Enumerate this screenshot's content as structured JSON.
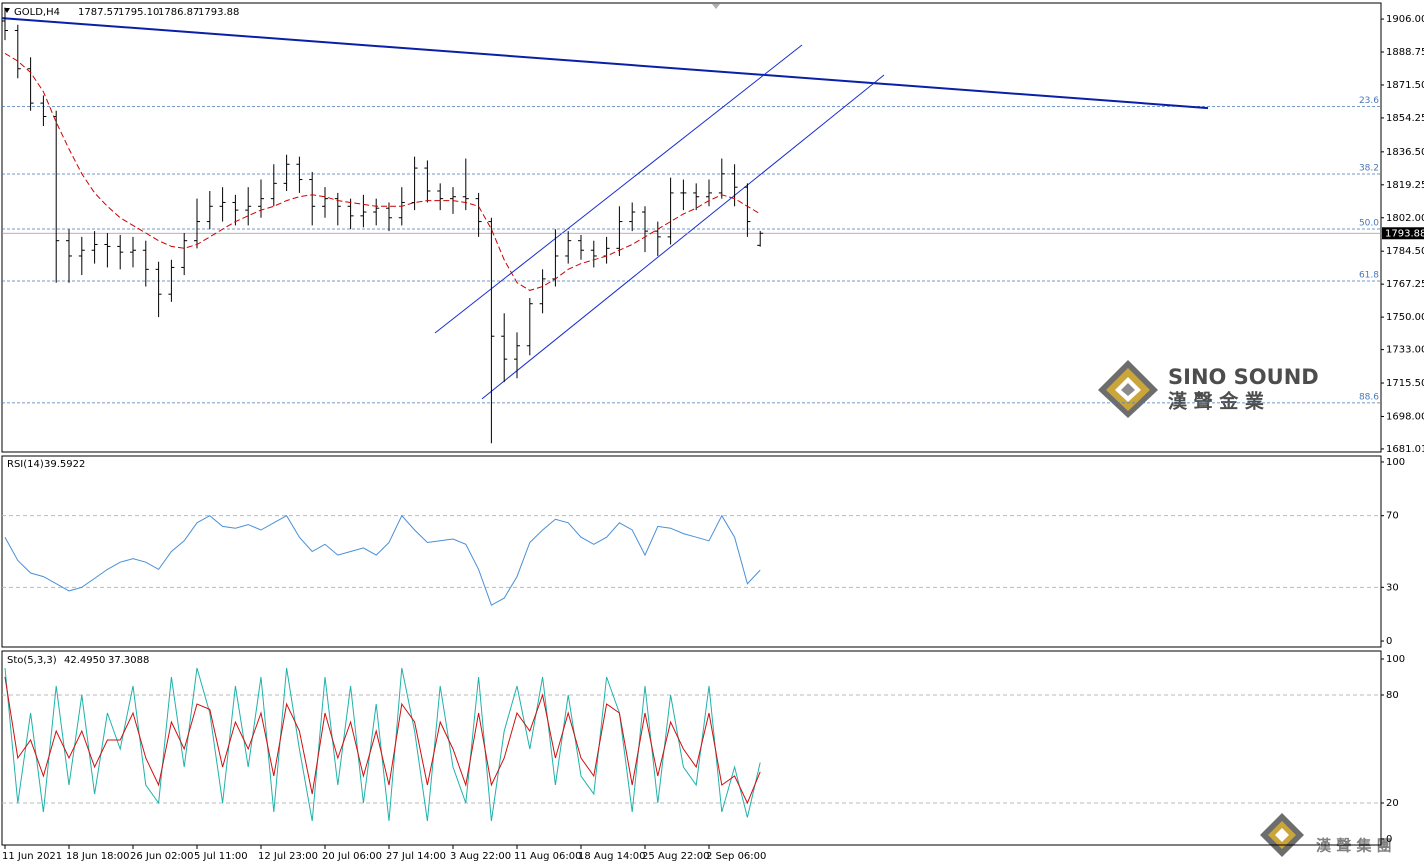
{
  "chart_data": {
    "type": "ohlc",
    "title": "GOLD,H4",
    "header_labels": [
      "1787.57",
      "1795.10",
      "1786.87",
      "1793.88"
    ],
    "categories": [
      "11 Jun 2021",
      null,
      null,
      null,
      null,
      "18 Jun 18:00",
      null,
      null,
      null,
      null,
      "26 Jun 02:00",
      null,
      null,
      null,
      null,
      "5 Jul 11:00",
      null,
      null,
      null,
      null,
      "12 Jul 23:00",
      null,
      null,
      null,
      null,
      "20 Jul 06:00",
      null,
      null,
      null,
      null,
      "27 Jul 14:00",
      null,
      null,
      null,
      null,
      "3 Aug 22:00",
      null,
      null,
      null,
      null,
      "11 Aug 06:00",
      null,
      null,
      null,
      null,
      "18 Aug 14:00",
      null,
      null,
      null,
      null,
      "25 Aug 22:00",
      null,
      null,
      null,
      null,
      "2 Sep 06:00",
      null,
      null,
      null,
      null
    ],
    "bars": [
      [
        1905,
        1912,
        1895,
        1900
      ],
      [
        1900,
        1903,
        1875,
        1880
      ],
      [
        1880,
        1886,
        1858,
        1862
      ],
      [
        1862,
        1866,
        1850,
        1855
      ],
      [
        1855,
        1858,
        1768,
        1790
      ],
      [
        1790,
        1796,
        1768,
        1782
      ],
      [
        1782,
        1792,
        1772,
        1785
      ],
      [
        1785,
        1795,
        1778,
        1788
      ],
      [
        1788,
        1794,
        1776,
        1787
      ],
      [
        1787,
        1793,
        1775,
        1784
      ],
      [
        1784,
        1792,
        1776,
        1785
      ],
      [
        1785,
        1790,
        1766,
        1775
      ],
      [
        1775,
        1779,
        1750,
        1762
      ],
      [
        1762,
        1780,
        1758,
        1776
      ],
      [
        1776,
        1794,
        1772,
        1790
      ],
      [
        1790,
        1812,
        1786,
        1800
      ],
      [
        1800,
        1816,
        1796,
        1808
      ],
      [
        1808,
        1818,
        1800,
        1810
      ],
      [
        1810,
        1814,
        1798,
        1806
      ],
      [
        1806,
        1818,
        1798,
        1808
      ],
      [
        1808,
        1822,
        1802,
        1812
      ],
      [
        1812,
        1830,
        1808,
        1820
      ],
      [
        1820,
        1835,
        1816,
        1830
      ],
      [
        1830,
        1834,
        1815,
        1822
      ],
      [
        1822,
        1826,
        1798,
        1808
      ],
      [
        1808,
        1818,
        1802,
        1812
      ],
      [
        1812,
        1815,
        1798,
        1808
      ],
      [
        1808,
        1812,
        1796,
        1803
      ],
      [
        1803,
        1814,
        1797,
        1805
      ],
      [
        1805,
        1812,
        1798,
        1807
      ],
      [
        1807,
        1810,
        1795,
        1802
      ],
      [
        1802,
        1818,
        1798,
        1810
      ],
      [
        1810,
        1834,
        1806,
        1828
      ],
      [
        1828,
        1832,
        1810,
        1816
      ],
      [
        1816,
        1820,
        1806,
        1812
      ],
      [
        1812,
        1818,
        1804,
        1813
      ],
      [
        1813,
        1833,
        1806,
        1812
      ],
      [
        1812,
        1815,
        1792,
        1800
      ],
      [
        1800,
        1802,
        1684,
        1740
      ],
      [
        1740,
        1752,
        1716,
        1728
      ],
      [
        1728,
        1742,
        1718,
        1735
      ],
      [
        1735,
        1760,
        1730,
        1757
      ],
      [
        1757,
        1775,
        1752,
        1770
      ],
      [
        1770,
        1796,
        1766,
        1782
      ],
      [
        1782,
        1795,
        1778,
        1790
      ],
      [
        1790,
        1793,
        1780,
        1785
      ],
      [
        1785,
        1790,
        1776,
        1782
      ],
      [
        1782,
        1792,
        1778,
        1786
      ],
      [
        1786,
        1808,
        1782,
        1800
      ],
      [
        1800,
        1810,
        1795,
        1805
      ],
      [
        1805,
        1808,
        1784,
        1795
      ],
      [
        1795,
        1800,
        1782,
        1792
      ],
      [
        1792,
        1823,
        1788,
        1815
      ],
      [
        1815,
        1822,
        1806,
        1815
      ],
      [
        1815,
        1820,
        1806,
        1813
      ],
      [
        1813,
        1822,
        1808,
        1815
      ],
      [
        1815,
        1833,
        1812,
        1825
      ],
      [
        1825,
        1830,
        1808,
        1818
      ],
      [
        1818,
        1820,
        1792,
        1800
      ],
      [
        1787.57,
        1795.1,
        1786.87,
        1793.88
      ]
    ],
    "ma": {
      "color": "#cc0000",
      "values": [
        1888,
        1884,
        1878,
        1868,
        1852,
        1838,
        1825,
        1815,
        1808,
        1802,
        1798,
        1794,
        1790,
        1787,
        1786,
        1788,
        1792,
        1796,
        1800,
        1803,
        1806,
        1808,
        1811,
        1813,
        1814,
        1813,
        1811,
        1810,
        1809,
        1808,
        1808,
        1808,
        1810,
        1811,
        1811,
        1811,
        1810,
        1808,
        1796,
        1780,
        1768,
        1764,
        1766,
        1770,
        1775,
        1778,
        1780,
        1782,
        1785,
        1788,
        1792,
        1796,
        1800,
        1804,
        1807,
        1811,
        1814,
        1812,
        1808,
        1804
      ]
    },
    "ylim": [
      1679.4,
      1914.4
    ],
    "yticks": [
      {
        "value": 1906.0,
        "label": "1906.00"
      },
      {
        "value": 1888.75,
        "label": "1888.75"
      },
      {
        "value": 1871.5,
        "label": "1871.50"
      },
      {
        "value": 1854.25,
        "label": "1854.25"
      },
      {
        "value": 1836.5,
        "label": "1836.50"
      },
      {
        "value": 1819.25,
        "label": "1819.25"
      },
      {
        "value": 1802.0,
        "label": "1802.00"
      },
      {
        "value": 1784.5,
        "label": "1784.50"
      },
      {
        "value": 1767.25,
        "label": "1767.25"
      },
      {
        "value": 1750.0,
        "label": "1750.00"
      },
      {
        "value": 1733.0,
        "label": "1733.00"
      },
      {
        "value": 1715.5,
        "label": "1715.50"
      },
      {
        "value": 1698.0,
        "label": "1698.00"
      },
      {
        "value": 1681.01,
        "label": "1681.01"
      }
    ],
    "fib_levels": [
      {
        "name": "23.6",
        "value": 1860.3
      },
      {
        "name": "38.2",
        "value": 1824.9
      },
      {
        "name": "50.0",
        "value": 1796.1
      },
      {
        "name": "61.8",
        "value": 1768.9
      },
      {
        "name": "88.6",
        "value": 1705.1
      }
    ],
    "trendlines": [
      {
        "color": "#0a1fa8",
        "values": [
          1906.5,
          1859.4
        ]
      },
      {
        "color": "#1a2fd0",
        "values": [
          1741.7,
          1892.4
        ]
      },
      {
        "color": "#1a2fd0",
        "values": [
          1707.2,
          1876.7
        ]
      }
    ],
    "rsi": {
      "name": "RSI(14)",
      "value_label": "39.5922",
      "color": "#4a8fd8",
      "ylim": [
        -3.33,
        103.33
      ],
      "yticks": [
        100,
        70,
        30,
        0
      ],
      "levels": [
        70,
        30
      ],
      "values": [
        58,
        45,
        38,
        36,
        32,
        28,
        30,
        35,
        40,
        44,
        46,
        44,
        40,
        50,
        56,
        66,
        70,
        64,
        63,
        65,
        62,
        66,
        70,
        58,
        50,
        54,
        48,
        50,
        52,
        48,
        55,
        70,
        62,
        55,
        56,
        57,
        54,
        40,
        20,
        24,
        36,
        55,
        62,
        68,
        66,
        58,
        54,
        58,
        66,
        62,
        48,
        64,
        63,
        60,
        58,
        56,
        70,
        58,
        32,
        39.5922
      ]
    },
    "stoch": {
      "name": "Sto(5,3,3)",
      "ylim": [
        -3.33,
        104.44
      ],
      "yticks": [
        100,
        80,
        20,
        0
      ],
      "levels": [
        80,
        20
      ],
      "series": [
        {
          "color": "#20b2aa",
          "value_label": "42.4950",
          "values": [
            95,
            20,
            70,
            15,
            85,
            30,
            80,
            25,
            70,
            50,
            85,
            30,
            20,
            90,
            40,
            95,
            70,
            20,
            85,
            40,
            90,
            15,
            95,
            50,
            10,
            90,
            30,
            85,
            20,
            75,
            10,
            95,
            60,
            10,
            85,
            40,
            20,
            90,
            10,
            60,
            85,
            50,
            90,
            30,
            80,
            35,
            25,
            90,
            70,
            15,
            85,
            20,
            80,
            40,
            30,
            85,
            15,
            40,
            12,
            42.495
          ]
        },
        {
          "color": "#d01010",
          "value_label": "37.3088",
          "values": [
            90,
            45,
            55,
            35,
            60,
            45,
            60,
            40,
            55,
            55,
            70,
            45,
            30,
            65,
            50,
            75,
            72,
            40,
            65,
            50,
            70,
            35,
            75,
            60,
            25,
            70,
            45,
            65,
            35,
            60,
            30,
            75,
            65,
            30,
            65,
            50,
            30,
            70,
            30,
            45,
            70,
            60,
            80,
            45,
            70,
            45,
            35,
            75,
            70,
            30,
            70,
            35,
            65,
            50,
            40,
            70,
            30,
            35,
            20,
            37.3088
          ]
        }
      ]
    },
    "logo": {
      "name": "SINO SOUND",
      "subtitle": "漢 聲 金 業",
      "footer": "漢 聲 集 團"
    }
  }
}
